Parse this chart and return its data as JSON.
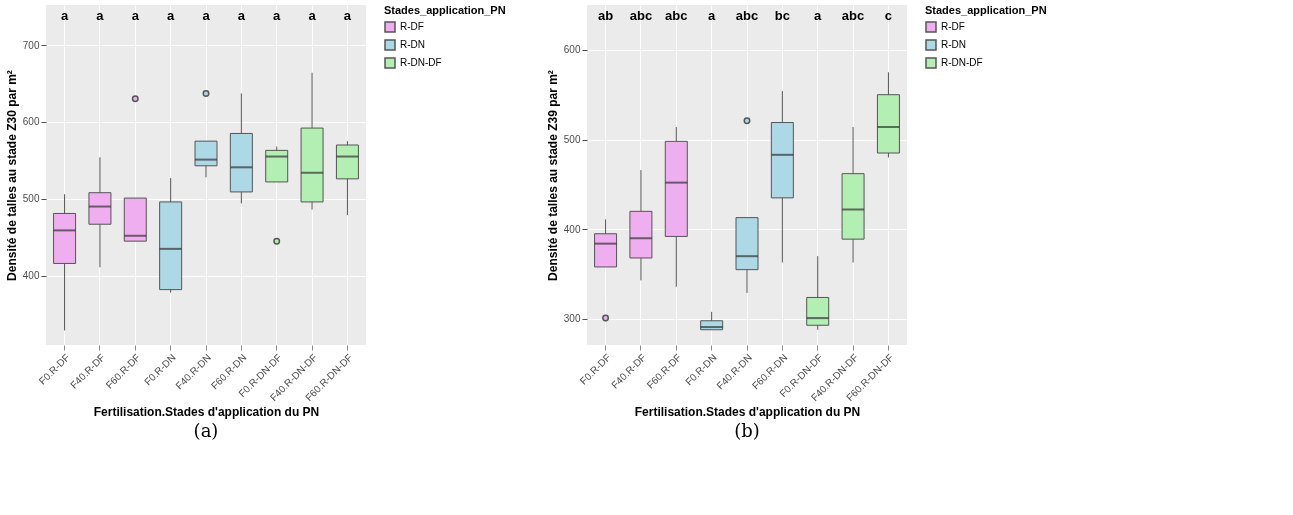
{
  "chart_data": [
    {
      "type": "box",
      "xlabel": "Fertilisation.Stades d'application du PN",
      "ylabel": "Densité de talles au stade Z30 par m²",
      "legend_title": "Stades_application_PN",
      "legend": "right",
      "grid": true,
      "categories": [
        "F0.R-DF",
        "F40.R-DF",
        "F60.R-DF",
        "F0.R-DN",
        "F40.R-DN",
        "F60.R-DN",
        "F0.R-DN-DF",
        "F40.R-DN-DF",
        "F60.R-DN-DF"
      ],
      "ylim": [
        310,
        752
      ],
      "yticks": [
        400,
        500,
        600,
        700
      ],
      "series": [
        {
          "name": "R-DF",
          "color": "#efaeef",
          "boxes": [
            {
              "low": 329,
              "q1": 416,
              "median": 459,
              "q3": 481,
              "high": 506
            },
            {
              "low": 411,
              "q1": 467,
              "median": 490,
              "q3": 508,
              "high": 554
            },
            {
              "low": 445,
              "q1": 445,
              "median": 452,
              "q3": 501,
              "high": 501,
              "outliers": [
                630
              ]
            },
            null,
            null,
            null,
            null,
            null,
            null
          ]
        },
        {
          "name": "R-DN",
          "color": "#add8e6",
          "boxes": [
            null,
            null,
            null,
            {
              "low": 378,
              "q1": 382,
              "median": 435,
              "q3": 496,
              "high": 527
            },
            {
              "low": 528,
              "q1": 543,
              "median": 551,
              "q3": 575,
              "high": 575,
              "outliers": [
                637
              ]
            },
            {
              "low": 494,
              "q1": 509,
              "median": 541,
              "q3": 585,
              "high": 637
            },
            null,
            null,
            null
          ]
        },
        {
          "name": "R-DN-DF",
          "color": "#b3eeb3",
          "boxes": [
            null,
            null,
            null,
            null,
            null,
            null,
            {
              "low": 522,
              "q1": 522,
              "median": 555,
              "q3": 563,
              "high": 568,
              "outliers": [
                445
              ]
            },
            {
              "low": 486,
              "q1": 496,
              "median": 534,
              "q3": 592,
              "high": 664
            },
            {
              "low": 479,
              "q1": 526,
              "median": 555,
              "q3": 570,
              "high": 575
            }
          ]
        }
      ],
      "annotations": [
        "a",
        "a",
        "a",
        "a",
        "a",
        "a",
        "a",
        "a",
        "a",
        "(a)"
      ]
    },
    {
      "type": "box",
      "xlabel": "Fertilisation.Stades d'application du PN",
      "ylabel": "Densité de talles au stade Z39 par m²",
      "legend_title": "Stades_application_PN",
      "legend": "right",
      "grid": true,
      "categories": [
        "F0.R-DF",
        "F40.R-DF",
        "F60.R-DF",
        "F0.R-DN",
        "F40.R-DN",
        "F60.R-DN",
        "F0.R-DN-DF",
        "F40.R-DN-DF",
        "F60.R-DN-DF"
      ],
      "ylim": [
        271,
        650
      ],
      "yticks": [
        300,
        400,
        500,
        600
      ],
      "series": [
        {
          "name": "R-DF",
          "color": "#efaeef",
          "boxes": [
            {
              "low": 358,
              "q1": 358,
              "median": 384,
              "q3": 395,
              "high": 411,
              "outliers": [
                301
              ]
            },
            {
              "low": 343,
              "q1": 368,
              "median": 390,
              "q3": 420,
              "high": 466
            },
            {
              "low": 336,
              "q1": 392,
              "median": 452,
              "q3": 498,
              "high": 514
            },
            null,
            null,
            null,
            null,
            null,
            null
          ]
        },
        {
          "name": "R-DN",
          "color": "#add8e6",
          "boxes": [
            null,
            null,
            null,
            {
              "low": 288,
              "q1": 288,
              "median": 291,
              "q3": 298,
              "high": 308
            },
            {
              "low": 329,
              "q1": 355,
              "median": 370,
              "q3": 413,
              "high": 413,
              "outliers": [
                521
              ]
            },
            {
              "low": 363,
              "q1": 435,
              "median": 483,
              "q3": 519,
              "high": 554
            },
            null,
            null,
            null
          ]
        },
        {
          "name": "R-DN-DF",
          "color": "#b3eeb3",
          "boxes": [
            null,
            null,
            null,
            null,
            null,
            null,
            {
              "low": 288,
              "q1": 293,
              "median": 301,
              "q3": 324,
              "high": 370
            },
            {
              "low": 363,
              "q1": 389,
              "median": 422,
              "q3": 462,
              "high": 514
            },
            {
              "low": 480,
              "q1": 485,
              "median": 514,
              "q3": 550,
              "high": 575
            }
          ]
        }
      ],
      "annotations": [
        "ab",
        "abc",
        "abc",
        "a",
        "abc",
        "bc",
        "a",
        "abc",
        "c",
        "(b)"
      ]
    }
  ]
}
